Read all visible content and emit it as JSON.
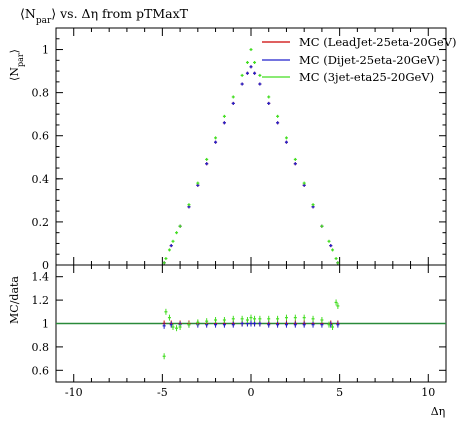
{
  "chart_data": {
    "type": "scatter",
    "title": "⟨N_par⟩ vs. Δη from pTMaxT",
    "title_parts": {
      "prefix": "⟨N",
      "sub": "par",
      "suffix": "⟩ vs. Δη from pTMaxT"
    },
    "ylabel_parts": {
      "prefix": "⟨N",
      "sub": "par",
      "suffix": "⟩"
    },
    "ratio_ylabel": "MC/data",
    "xlabel": "Δη",
    "xlim": [
      -11,
      11
    ],
    "ylim": [
      0,
      1.1
    ],
    "ratio_ylim": [
      0.5,
      1.5
    ],
    "x_ticks": [
      -10,
      -5,
      0,
      5,
      10
    ],
    "x_tick_labels": [
      "-10",
      "-5",
      "0",
      "5",
      "10"
    ],
    "y_ticks": [
      0,
      0.2,
      0.4,
      0.6,
      0.8,
      1
    ],
    "y_tick_labels": [
      "0",
      "0.2",
      "0.4",
      "0.6",
      "0.8",
      "1"
    ],
    "ratio_y_ticks": [
      0.6,
      0.8,
      1,
      1.2,
      1.4
    ],
    "ratio_y_tick_labels": [
      "0.6",
      "0.8",
      "1",
      "1.2",
      "1.4"
    ],
    "legend_position": "top-right",
    "series": [
      {
        "name": "MC (LeadJet-25eta-20GeV)",
        "color": "#cc0000",
        "x": [
          -4.9,
          -4.5,
          -4.0,
          -3.5,
          -3.0,
          -2.5,
          -2.0,
          -1.5,
          -1.0,
          -0.5,
          -0.2,
          0.0,
          0.2,
          0.5,
          1.0,
          1.5,
          2.0,
          2.5,
          3.0,
          3.5,
          4.0,
          4.5,
          4.9
        ],
        "y": [
          0.01,
          0.09,
          0.18,
          0.27,
          0.37,
          0.47,
          0.57,
          0.66,
          0.75,
          0.84,
          0.89,
          0.92,
          0.89,
          0.84,
          0.75,
          0.66,
          0.57,
          0.47,
          0.37,
          0.27,
          0.18,
          0.09,
          0.01
        ],
        "ratio": [
          1.0,
          1.0,
          1.0,
          1.0,
          1.0,
          1.0,
          1.0,
          1.0,
          1.0,
          1.0,
          1.0,
          1.0,
          1.0,
          1.0,
          1.0,
          1.0,
          1.0,
          1.0,
          1.0,
          1.0,
          1.0,
          1.0,
          1.0
        ]
      },
      {
        "name": "MC (Dijet-25eta-20GeV)",
        "color": "#2222cc",
        "x": [
          -4.9,
          -4.5,
          -4.0,
          -3.5,
          -3.0,
          -2.5,
          -2.0,
          -1.5,
          -1.0,
          -0.5,
          -0.2,
          0.0,
          0.2,
          0.5,
          1.0,
          1.5,
          2.0,
          2.5,
          3.0,
          3.5,
          4.0,
          4.5,
          4.9
        ],
        "y": [
          0.01,
          0.09,
          0.18,
          0.27,
          0.37,
          0.47,
          0.57,
          0.66,
          0.75,
          0.84,
          0.89,
          0.92,
          0.89,
          0.84,
          0.75,
          0.66,
          0.57,
          0.47,
          0.37,
          0.27,
          0.18,
          0.09,
          0.01
        ],
        "ratio": [
          0.98,
          0.99,
          0.99,
          0.99,
          0.99,
          0.99,
          0.99,
          0.99,
          0.99,
          1.0,
          1.0,
          1.0,
          1.0,
          1.0,
          0.99,
          0.99,
          0.99,
          0.99,
          0.99,
          0.99,
          0.99,
          0.99,
          0.99
        ]
      },
      {
        "name": "MC (3jet-eta25-20GeV)",
        "color": "#44dd22",
        "x": [
          -4.9,
          -4.8,
          -4.6,
          -4.4,
          -4.2,
          -4.0,
          -3.5,
          -3.0,
          -2.5,
          -2.0,
          -1.5,
          -1.0,
          -0.5,
          -0.2,
          0.0,
          0.2,
          0.5,
          1.0,
          1.5,
          2.0,
          2.5,
          3.0,
          3.5,
          4.0,
          4.4,
          4.6,
          4.8,
          4.9
        ],
        "y": [
          0.01,
          0.03,
          0.07,
          0.11,
          0.15,
          0.18,
          0.28,
          0.38,
          0.49,
          0.59,
          0.69,
          0.78,
          0.88,
          0.94,
          1.0,
          0.94,
          0.88,
          0.78,
          0.69,
          0.59,
          0.49,
          0.38,
          0.28,
          0.18,
          0.11,
          0.07,
          0.03,
          0.01
        ],
        "ratio": [
          0.72,
          1.1,
          1.05,
          0.97,
          0.96,
          0.97,
          0.99,
          1.01,
          1.02,
          1.03,
          1.03,
          1.04,
          1.04,
          1.03,
          1.05,
          1.04,
          1.04,
          1.04,
          1.04,
          1.05,
          1.05,
          1.05,
          1.04,
          1.03,
          0.99,
          0.97,
          1.18,
          1.15
        ]
      }
    ]
  }
}
